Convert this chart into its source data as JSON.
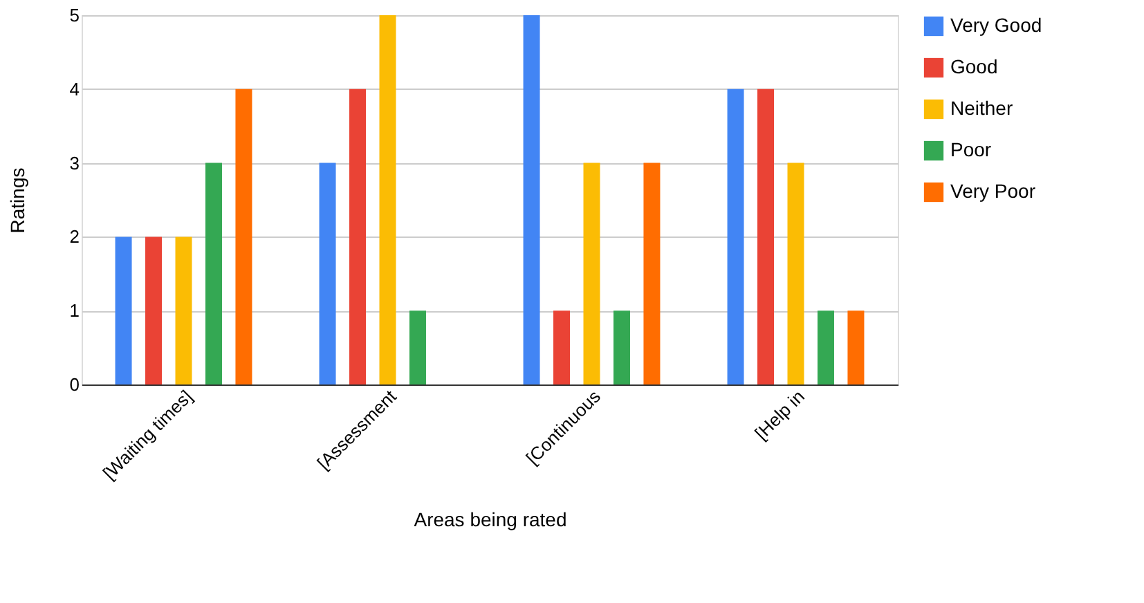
{
  "chart_data": {
    "type": "bar",
    "xlabel": "Areas being rated",
    "ylabel": "Ratings",
    "categories": [
      "[Waiting times]",
      "[Assessment",
      "[Continuous",
      "[Help in"
    ],
    "series": [
      {
        "name": "Very Good",
        "color": "#4285f4",
        "values": [
          2,
          3,
          5,
          4
        ]
      },
      {
        "name": "Good",
        "color": "#ea4335",
        "values": [
          2,
          4,
          1,
          4
        ]
      },
      {
        "name": "Neither",
        "color": "#fbbc04",
        "values": [
          2,
          5,
          3,
          3
        ]
      },
      {
        "name": "Poor",
        "color": "#34a853",
        "values": [
          3,
          1,
          1,
          1
        ]
      },
      {
        "name": "Very Poor",
        "color": "#ff6d01",
        "values": [
          4,
          null,
          3,
          1
        ]
      }
    ],
    "ylim": [
      0,
      5
    ],
    "yticks": [
      0,
      1,
      2,
      3,
      4,
      5
    ],
    "grid": "y",
    "legend": "top right"
  }
}
